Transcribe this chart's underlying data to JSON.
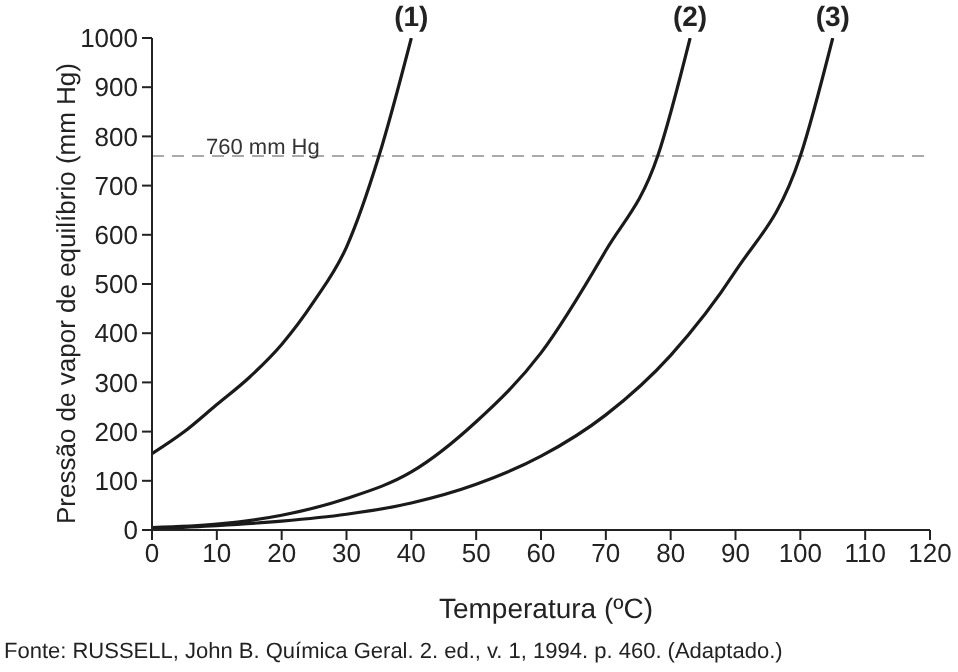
{
  "chart_data": {
    "type": "line",
    "xlabel": "Temperatura (ºC)",
    "ylabel": "Pressão de vapor de equilíbrio (mm Hg)",
    "annotations": [
      "Fonte: RUSSELL, John B. Química Geral. 2. ed., v. 1, 1994. p. 460. (Adaptado.)"
    ],
    "series": [
      {
        "name": "(1)",
        "color": "#1a1a1a",
        "x": [
          0,
          5,
          10,
          15,
          20,
          25,
          30,
          35,
          40
        ],
        "values": [
          155,
          200,
          255,
          310,
          377,
          465,
          575,
          760,
          1000
        ]
      },
      {
        "name": "(2)",
        "color": "#1a1a1a",
        "x": [
          0,
          10,
          20,
          30,
          40,
          50,
          60,
          70,
          78,
          83
        ],
        "values": [
          5,
          12,
          30,
          64,
          118,
          220,
          360,
          568,
          760,
          1000
        ]
      },
      {
        "name": "(3)",
        "color": "#1a1a1a",
        "x": [
          0,
          10,
          20,
          30,
          40,
          50,
          60,
          70,
          80,
          90,
          100,
          105
        ],
        "values": [
          3,
          9,
          18,
          32,
          55,
          93,
          150,
          234,
          355,
          526,
          760,
          1000
        ]
      }
    ],
    "xlim": [
      0,
      120
    ],
    "xticks": [
      0,
      10,
      20,
      30,
      40,
      50,
      60,
      70,
      80,
      90,
      100,
      110,
      120
    ],
    "ylim": [
      0,
      1000
    ],
    "yticks": [
      0,
      100,
      200,
      300,
      400,
      500,
      600,
      700,
      800,
      900,
      1000
    ],
    "ref_lines": [
      {
        "axis": "y",
        "value": 760,
        "label": "760 mm Hg",
        "color": "#aaaaaa",
        "line_style": "dashed"
      }
    ],
    "grid": false,
    "legend": false,
    "marker": "none",
    "line_style": "solid"
  }
}
